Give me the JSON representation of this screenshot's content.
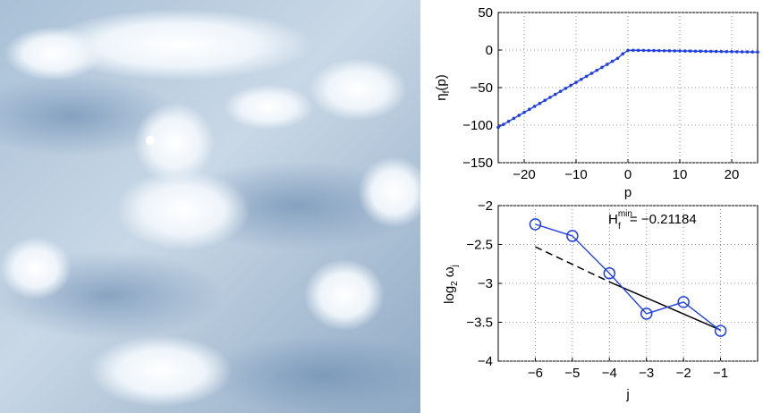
{
  "photo": {
    "subject": "frost-crystals-on-snow"
  },
  "colors": {
    "series": "#1f3fe6",
    "fit": "#000000",
    "grid": "#9a9a9a"
  },
  "chart_data": [
    {
      "type": "line",
      "xlabel": "p",
      "ylabel": "ηf(p)",
      "ylabel_main": "η",
      "ylabel_sub": "f",
      "ylabel_tail": "(p)",
      "xlim": [
        -25,
        25
      ],
      "ylim": [
        -150,
        50
      ],
      "xticks": [
        -20,
        -10,
        0,
        10,
        20
      ],
      "yticks": [
        50,
        0,
        -50,
        -100,
        -150
      ],
      "grid": true,
      "series": [
        {
          "x": [
            -25,
            -24,
            -23,
            -22,
            -21,
            -20,
            -19,
            -18,
            -17,
            -16,
            -15,
            -14,
            -13,
            -12,
            -11,
            -10,
            -9,
            -8,
            -7,
            -6,
            -5,
            -4,
            -3,
            -2,
            -1,
            0,
            1,
            2,
            3,
            4,
            5,
            6,
            7,
            8,
            9,
            10,
            11,
            12,
            13,
            14,
            15,
            16,
            17,
            18,
            19,
            20,
            21,
            22,
            23,
            24,
            25
          ],
          "values": [
            -103,
            -99,
            -95,
            -91,
            -87,
            -83,
            -79,
            -75,
            -71,
            -67,
            -63,
            -59,
            -55,
            -51,
            -47,
            -43,
            -39,
            -35,
            -31,
            -27,
            -23,
            -19,
            -15,
            -11,
            -5,
            -0.5,
            -0.3,
            -0.4,
            -0.5,
            -0.6,
            -0.7,
            -0.8,
            -0.9,
            -1.0,
            -1.1,
            -1.2,
            -1.3,
            -1.4,
            -1.5,
            -1.6,
            -1.7,
            -1.8,
            -1.9,
            -2.0,
            -2.1,
            -2.2,
            -2.3,
            -2.4,
            -2.5,
            -2.6,
            -2.7
          ]
        }
      ]
    },
    {
      "type": "line",
      "xlabel": "j",
      "ylabel": "log2 ωj",
      "ylabel_main": "log",
      "ylabel_sub1": "2",
      "ylabel_mid": " ω",
      "ylabel_sub2": "j",
      "xlim": [
        -7,
        0
      ],
      "ylim": [
        -4,
        -2
      ],
      "xticks": [
        -6,
        -5,
        -4,
        -3,
        -2,
        -1
      ],
      "yticks": [
        -2,
        -2.5,
        -3,
        -3.5,
        -4
      ],
      "grid": true,
      "annotation": {
        "label": "H",
        "sup": "min",
        "sub": "f",
        "value_text": " = −0.21184"
      },
      "series": [
        {
          "x": [
            -6,
            -5,
            -4,
            -3,
            -2,
            -1
          ],
          "values": [
            -2.24,
            -2.39,
            -2.87,
            -3.39,
            -3.24,
            -3.61
          ]
        }
      ],
      "fit_solid": {
        "x": [
          -4,
          -1
        ],
        "values": [
          -2.98,
          -3.6
        ]
      },
      "fit_dashed": {
        "x": [
          -6,
          -4
        ],
        "values": [
          -2.53,
          -2.98
        ]
      }
    }
  ]
}
